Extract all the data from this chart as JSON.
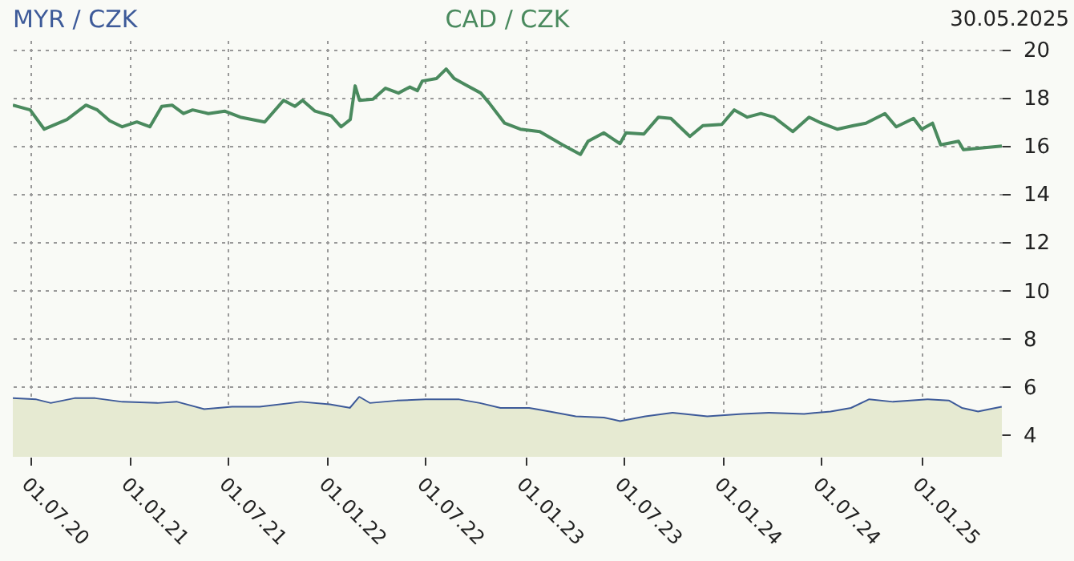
{
  "chart_data": {
    "type": "line",
    "annotations": [
      "30.05.2025"
    ],
    "xlim": [
      "2020-05-30",
      "2025-05-30"
    ],
    "xticks": [
      {
        "value": "2020-07-01",
        "label": "01.07.20"
      },
      {
        "value": "2021-01-01",
        "label": "01.01.21"
      },
      {
        "value": "2021-07-01",
        "label": "01.07.21"
      },
      {
        "value": "2022-01-01",
        "label": "01.01.22"
      },
      {
        "value": "2022-07-01",
        "label": "01.07.22"
      },
      {
        "value": "2023-01-01",
        "label": "01.01.23"
      },
      {
        "value": "2023-07-01",
        "label": "01.07.23"
      },
      {
        "value": "2024-01-01",
        "label": "01.01.24"
      },
      {
        "value": "2024-07-01",
        "label": "01.07.24"
      },
      {
        "value": "2025-01-01",
        "label": "01.01.25"
      }
    ],
    "ylim": [
      3.1,
      20.4
    ],
    "yticks": [
      4,
      6,
      8,
      10,
      12,
      14,
      16,
      18,
      20
    ],
    "grid": true,
    "series": [
      {
        "name": "MYR / CZK",
        "type": "area",
        "color": "#3d5a99",
        "x": [
          "2020-05-30",
          "2020-07-12",
          "2020-08-08",
          "2020-09-21",
          "2020-10-29",
          "2020-12-18",
          "2021-02-21",
          "2021-03-29",
          "2021-05-18",
          "2021-07-09",
          "2021-08-29",
          "2021-11-13",
          "2022-01-05",
          "2022-02-12",
          "2022-03-01",
          "2022-03-20",
          "2022-05-09",
          "2022-07-01",
          "2022-09-01",
          "2022-10-09",
          "2022-11-16",
          "2023-01-08",
          "2023-02-15",
          "2023-04-04",
          "2023-05-26",
          "2023-06-25",
          "2023-08-11",
          "2023-09-30",
          "2023-12-03",
          "2024-02-06",
          "2024-03-26",
          "2024-05-30",
          "2024-07-18",
          "2024-08-25",
          "2024-09-27",
          "2024-11-10",
          "2025-01-13",
          "2025-02-21",
          "2025-03-17",
          "2025-04-16",
          "2025-05-30"
        ],
        "values": [
          5.5,
          5.45,
          5.3,
          5.5,
          5.5,
          5.35,
          5.3,
          5.35,
          5.05,
          5.15,
          5.15,
          5.35,
          5.25,
          5.1,
          5.55,
          5.3,
          5.4,
          5.45,
          5.45,
          5.3,
          5.1,
          5.1,
          4.95,
          4.75,
          4.7,
          4.55,
          4.75,
          4.9,
          4.75,
          4.85,
          4.9,
          4.85,
          4.95,
          5.1,
          5.45,
          5.35,
          5.45,
          5.4,
          5.1,
          4.95,
          5.15
        ]
      },
      {
        "name": "CAD / CZK",
        "color": "#4a8a5e",
        "x": [
          "2020-05-30",
          "2020-07-01",
          "2020-07-27",
          "2020-09-07",
          "2020-10-12",
          "2020-11-02",
          "2020-11-25",
          "2020-12-18",
          "2021-01-14",
          "2021-02-07",
          "2021-03-01",
          "2021-03-20",
          "2021-04-10",
          "2021-04-27",
          "2021-05-26",
          "2021-06-25",
          "2021-07-24",
          "2021-09-07",
          "2021-10-12",
          "2021-11-02",
          "2021-11-16",
          "2021-12-09",
          "2022-01-08",
          "2022-01-26",
          "2022-02-12",
          "2022-02-21",
          "2022-03-01",
          "2022-03-26",
          "2022-04-18",
          "2022-05-12",
          "2022-06-02",
          "2022-06-16",
          "2022-06-25",
          "2022-07-21",
          "2022-08-08",
          "2022-08-23",
          "2022-09-12",
          "2022-10-11",
          "2022-10-26",
          "2022-11-24",
          "2022-12-23",
          "2023-01-28",
          "2023-02-20",
          "2023-03-11",
          "2023-04-13",
          "2023-04-27",
          "2023-05-26",
          "2023-06-25",
          "2023-07-06",
          "2023-08-08",
          "2023-09-04",
          "2023-09-27",
          "2023-11-01",
          "2023-11-25",
          "2023-12-30",
          "2024-01-22",
          "2024-02-15",
          "2024-03-11",
          "2024-04-04",
          "2024-05-09",
          "2024-06-08",
          "2024-07-01",
          "2024-07-30",
          "2024-08-29",
          "2024-09-21",
          "2024-10-26",
          "2024-11-16",
          "2024-12-18",
          "2025-01-02",
          "2025-01-22",
          "2025-02-06",
          "2025-03-11",
          "2025-03-20",
          "2025-05-30"
        ],
        "values": [
          17.7,
          17.5,
          16.7,
          17.1,
          17.7,
          17.5,
          17.05,
          16.8,
          17.0,
          16.8,
          17.65,
          17.7,
          17.35,
          17.5,
          17.35,
          17.45,
          17.2,
          17.0,
          17.9,
          17.65,
          17.9,
          17.45,
          17.25,
          16.8,
          17.1,
          18.5,
          17.9,
          17.95,
          18.4,
          18.2,
          18.45,
          18.3,
          18.7,
          18.8,
          19.2,
          18.8,
          18.55,
          18.2,
          17.8,
          16.95,
          16.7,
          16.6,
          16.3,
          16.05,
          15.65,
          16.2,
          16.55,
          16.1,
          16.55,
          16.5,
          17.2,
          17.15,
          16.4,
          16.85,
          16.9,
          17.5,
          17.2,
          17.35,
          17.2,
          16.6,
          17.2,
          16.95,
          16.7,
          16.85,
          16.95,
          17.35,
          16.8,
          17.15,
          16.7,
          16.95,
          16.05,
          16.2,
          15.85,
          16.0
        ]
      }
    ]
  }
}
